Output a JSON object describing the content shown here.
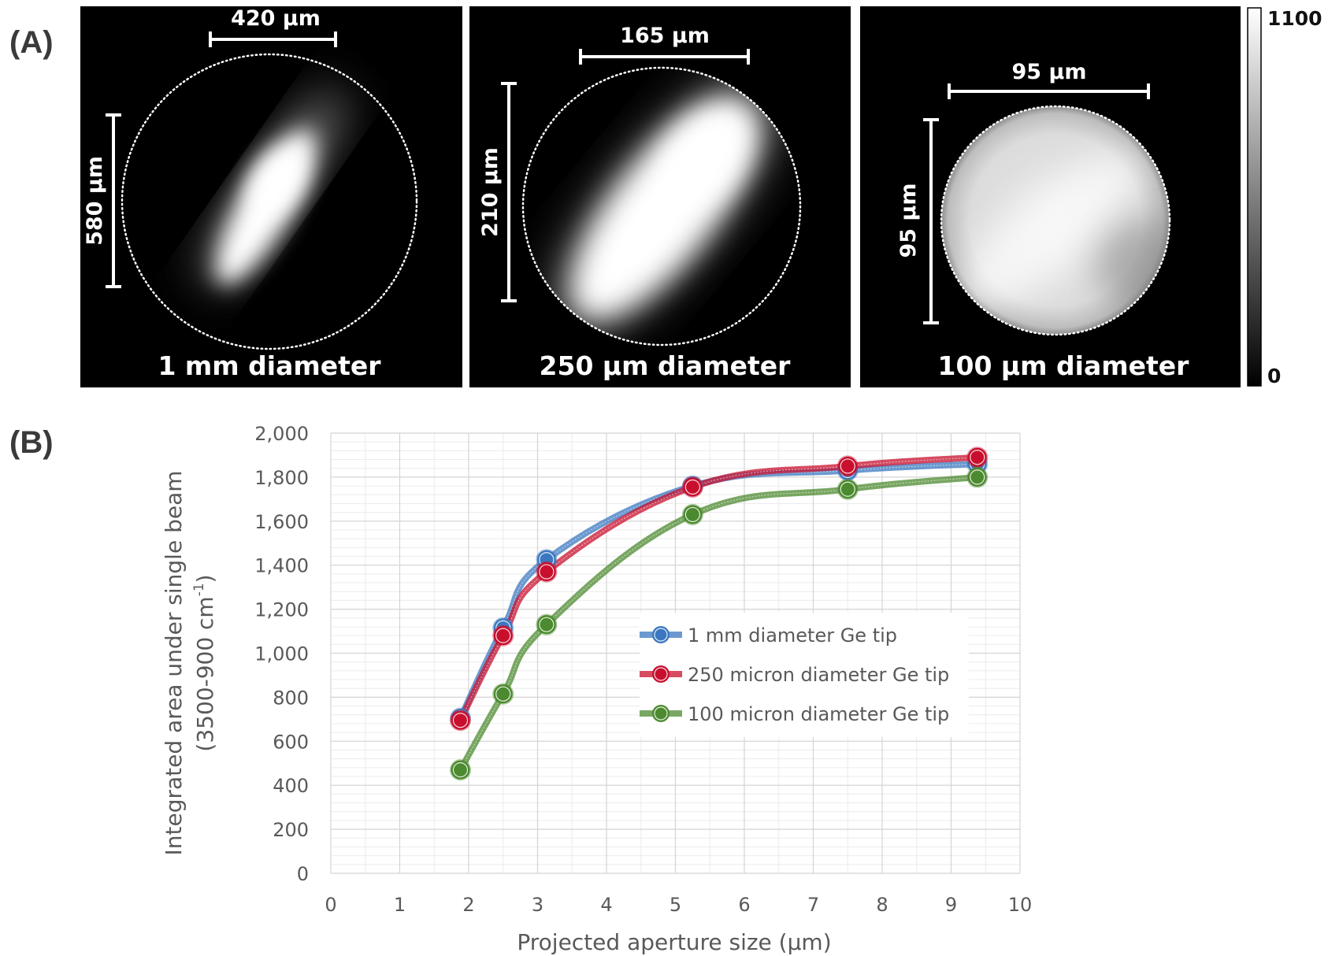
{
  "panel_a": {
    "letter": "(A)",
    "images": [
      {
        "caption": "1 mm diameter",
        "width_label": "420 µm",
        "height_label": "580 µm"
      },
      {
        "caption": "250 µm diameter",
        "width_label": "165 µm",
        "height_label": "210 µm"
      },
      {
        "caption": "100 µm diameter",
        "width_label": "95 µm",
        "height_label": "95 µm"
      }
    ],
    "colorbar": {
      "max_label": "1100",
      "min_label": "0"
    }
  },
  "panel_b": {
    "letter": "(B)"
  },
  "chart_data": {
    "type": "line",
    "xlabel": "Projected aperture size (µm)",
    "ylabel_line1": "Integrated area under single beam",
    "ylabel_line2_main": "(3500-900 cm",
    "ylabel_line2_sup": "-1",
    "ylabel_line2_end": ")",
    "xlim": [
      0,
      10
    ],
    "ylim": [
      0,
      2000
    ],
    "x_ticks": [
      0,
      1,
      2,
      3,
      4,
      5,
      6,
      7,
      8,
      9,
      10
    ],
    "y_ticks": [
      0,
      200,
      400,
      600,
      800,
      1000,
      1200,
      1400,
      1600,
      1800,
      2000
    ],
    "y_tick_labels": [
      "0",
      "200",
      "400",
      "600",
      "800",
      "1,000",
      "1,200",
      "1,400",
      "1,600",
      "1,800",
      "2,000"
    ],
    "grid": true,
    "legend_position": "center-right",
    "series": [
      {
        "name": "1 mm diameter Ge tip",
        "color": "#3b78c0",
        "x": [
          1.88,
          2.5,
          3.13,
          5.25,
          7.5,
          9.38
        ],
        "y": [
          705,
          1115,
          1425,
          1760,
          1830,
          1860
        ]
      },
      {
        "name": "250 micron diameter Ge tip",
        "color": "#c8102e",
        "x": [
          1.88,
          2.5,
          3.13,
          5.25,
          7.5,
          9.38
        ],
        "y": [
          695,
          1080,
          1370,
          1755,
          1850,
          1890
        ]
      },
      {
        "name": "100 micron diameter Ge tip",
        "color": "#4c8a2f",
        "x": [
          1.88,
          2.5,
          3.13,
          5.25,
          7.5,
          9.38
        ],
        "y": [
          470,
          815,
          1130,
          1630,
          1745,
          1800
        ]
      }
    ]
  }
}
